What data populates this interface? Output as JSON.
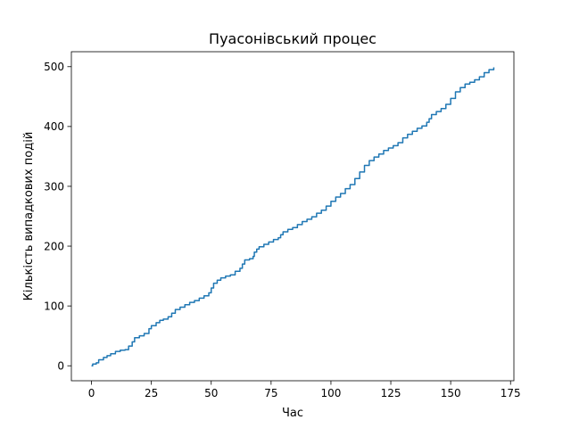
{
  "chart_data": {
    "type": "line",
    "title": "Пуасонівський процес",
    "xlabel": "Час",
    "ylabel": "Кількість випадкових подій",
    "xlim": [
      -8.4,
      176.4
    ],
    "ylim": [
      -25,
      525
    ],
    "xticks": [
      0,
      25,
      50,
      75,
      100,
      125,
      150,
      175
    ],
    "yticks": [
      0,
      100,
      200,
      300,
      400,
      500
    ],
    "grid": false,
    "line_color": "#1f77b4",
    "series": [
      {
        "name": "",
        "step": true,
        "points": [
          [
            0,
            0
          ],
          [
            0.5,
            3
          ],
          [
            2,
            5
          ],
          [
            3,
            10
          ],
          [
            5,
            14
          ],
          [
            6.5,
            17
          ],
          [
            8,
            20
          ],
          [
            10,
            24
          ],
          [
            12,
            26
          ],
          [
            14,
            27
          ],
          [
            15.5,
            33
          ],
          [
            17,
            40
          ],
          [
            18,
            47
          ],
          [
            20,
            50
          ],
          [
            22,
            54
          ],
          [
            24,
            62
          ],
          [
            25,
            67
          ],
          [
            27,
            72
          ],
          [
            28.5,
            76
          ],
          [
            30,
            78
          ],
          [
            32,
            82
          ],
          [
            33.5,
            88
          ],
          [
            35,
            94
          ],
          [
            37,
            98
          ],
          [
            39,
            102
          ],
          [
            41,
            106
          ],
          [
            43,
            109
          ],
          [
            45,
            113
          ],
          [
            47,
            117
          ],
          [
            49,
            122
          ],
          [
            50,
            130
          ],
          [
            51,
            138
          ],
          [
            52.5,
            143
          ],
          [
            54,
            147
          ],
          [
            56,
            150
          ],
          [
            58,
            152
          ],
          [
            60,
            158
          ],
          [
            62,
            163
          ],
          [
            63,
            170
          ],
          [
            64,
            177
          ],
          [
            66,
            179
          ],
          [
            67.5,
            183
          ],
          [
            68,
            190
          ],
          [
            69,
            195
          ],
          [
            70,
            199
          ],
          [
            72,
            203
          ],
          [
            74,
            207
          ],
          [
            76,
            211
          ],
          [
            78,
            214
          ],
          [
            79,
            219
          ],
          [
            80,
            224
          ],
          [
            82,
            228
          ],
          [
            84,
            231
          ],
          [
            86,
            236
          ],
          [
            88,
            241
          ],
          [
            90,
            245
          ],
          [
            92,
            249
          ],
          [
            94,
            255
          ],
          [
            96,
            260
          ],
          [
            98,
            267
          ],
          [
            100,
            275
          ],
          [
            102,
            282
          ],
          [
            104,
            288
          ],
          [
            106,
            296
          ],
          [
            108,
            303
          ],
          [
            110,
            313
          ],
          [
            112,
            324
          ],
          [
            114,
            335
          ],
          [
            116,
            343
          ],
          [
            118,
            349
          ],
          [
            120,
            354
          ],
          [
            122,
            360
          ],
          [
            124,
            364
          ],
          [
            126,
            368
          ],
          [
            128,
            373
          ],
          [
            130,
            381
          ],
          [
            132,
            387
          ],
          [
            134,
            392
          ],
          [
            136,
            397
          ],
          [
            138,
            401
          ],
          [
            140,
            407
          ],
          [
            141,
            413
          ],
          [
            142,
            420
          ],
          [
            144,
            425
          ],
          [
            146,
            430
          ],
          [
            148,
            437
          ],
          [
            150,
            447
          ],
          [
            152,
            458
          ],
          [
            154,
            465
          ],
          [
            156,
            471
          ],
          [
            158,
            474
          ],
          [
            160,
            478
          ],
          [
            162,
            483
          ],
          [
            164,
            490
          ],
          [
            166,
            495
          ],
          [
            168,
            499
          ]
        ]
      }
    ]
  }
}
